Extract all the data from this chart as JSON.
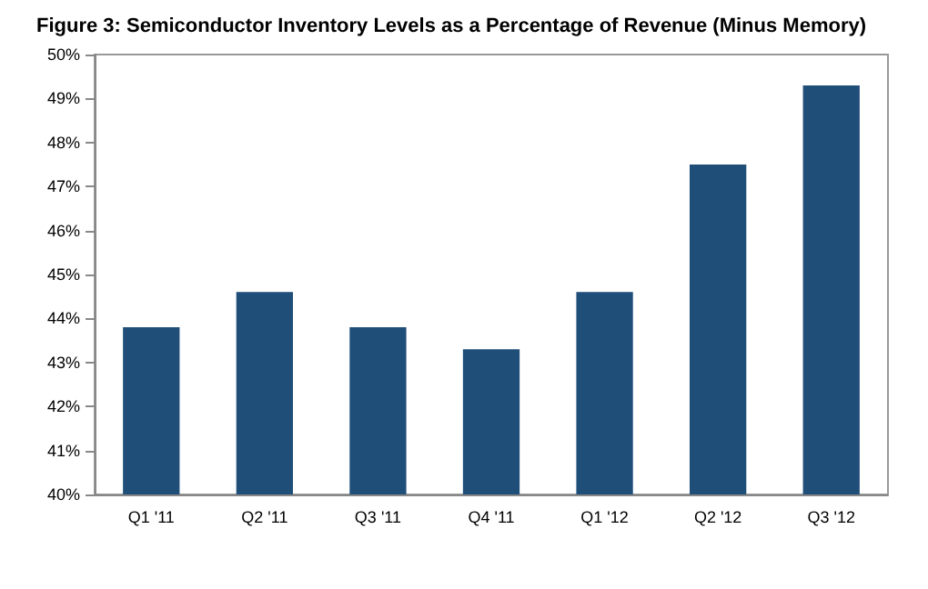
{
  "chart_data": {
    "type": "bar",
    "title": "Figure 3: Semiconductor Inventory Levels as a Percentage of Revenue (Minus Memory)",
    "categories": [
      "Q1 '11",
      "Q2 '11",
      "Q3 '11",
      "Q4 '11",
      "Q1 '12",
      "Q2 '12",
      "Q3 '12"
    ],
    "values": [
      43.8,
      44.6,
      43.8,
      43.3,
      44.6,
      47.5,
      49.3
    ],
    "color": "#1f4e79",
    "ylim": [
      40,
      50
    ],
    "yticks": [
      {
        "value": 40,
        "label": "40%"
      },
      {
        "value": 41,
        "label": "41%"
      },
      {
        "value": 42,
        "label": "42%"
      },
      {
        "value": 43,
        "label": "43%"
      },
      {
        "value": 44,
        "label": "44%"
      },
      {
        "value": 45,
        "label": "45%"
      },
      {
        "value": 46,
        "label": "46%"
      },
      {
        "value": 47,
        "label": "47%"
      },
      {
        "value": 48,
        "label": "48%"
      },
      {
        "value": 49,
        "label": "49%"
      },
      {
        "value": 50,
        "label": "50%"
      }
    ],
    "grid": false
  }
}
